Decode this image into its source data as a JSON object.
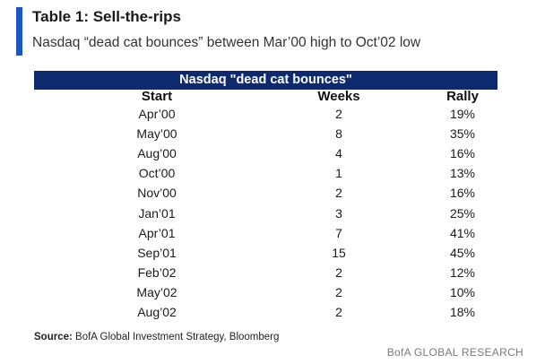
{
  "title": "Table 1: Sell-the-rips",
  "subtitle": "Nasdaq “dead cat bounces” between Mar’00 high to Oct’02 low",
  "accent_color": "#1a56c4",
  "header_color": "#0e2a6e",
  "chart_data": {
    "type": "table",
    "title": "Nasdaq \"dead cat bounces\"",
    "columns": [
      "Start",
      "Weeks",
      "Rally"
    ],
    "rows": [
      [
        "Apr’00",
        "2",
        "19%"
      ],
      [
        "May’00",
        "8",
        "35%"
      ],
      [
        "Aug’00",
        "4",
        "16%"
      ],
      [
        "Oct’00",
        "1",
        "13%"
      ],
      [
        "Nov’00",
        "2",
        "16%"
      ],
      [
        "Jan’01",
        "3",
        "25%"
      ],
      [
        "Apr’01",
        "7",
        "41%"
      ],
      [
        "Sep’01",
        "15",
        "45%"
      ],
      [
        "Feb’02",
        "2",
        "12%"
      ],
      [
        "May’02",
        "2",
        "10%"
      ],
      [
        "Aug’02",
        "2",
        "18%"
      ]
    ]
  },
  "source": {
    "label": "Source:",
    "text": "BofA Global Investment Strategy, Bloomberg"
  },
  "brand": "BofA GLOBAL RESEARCH"
}
